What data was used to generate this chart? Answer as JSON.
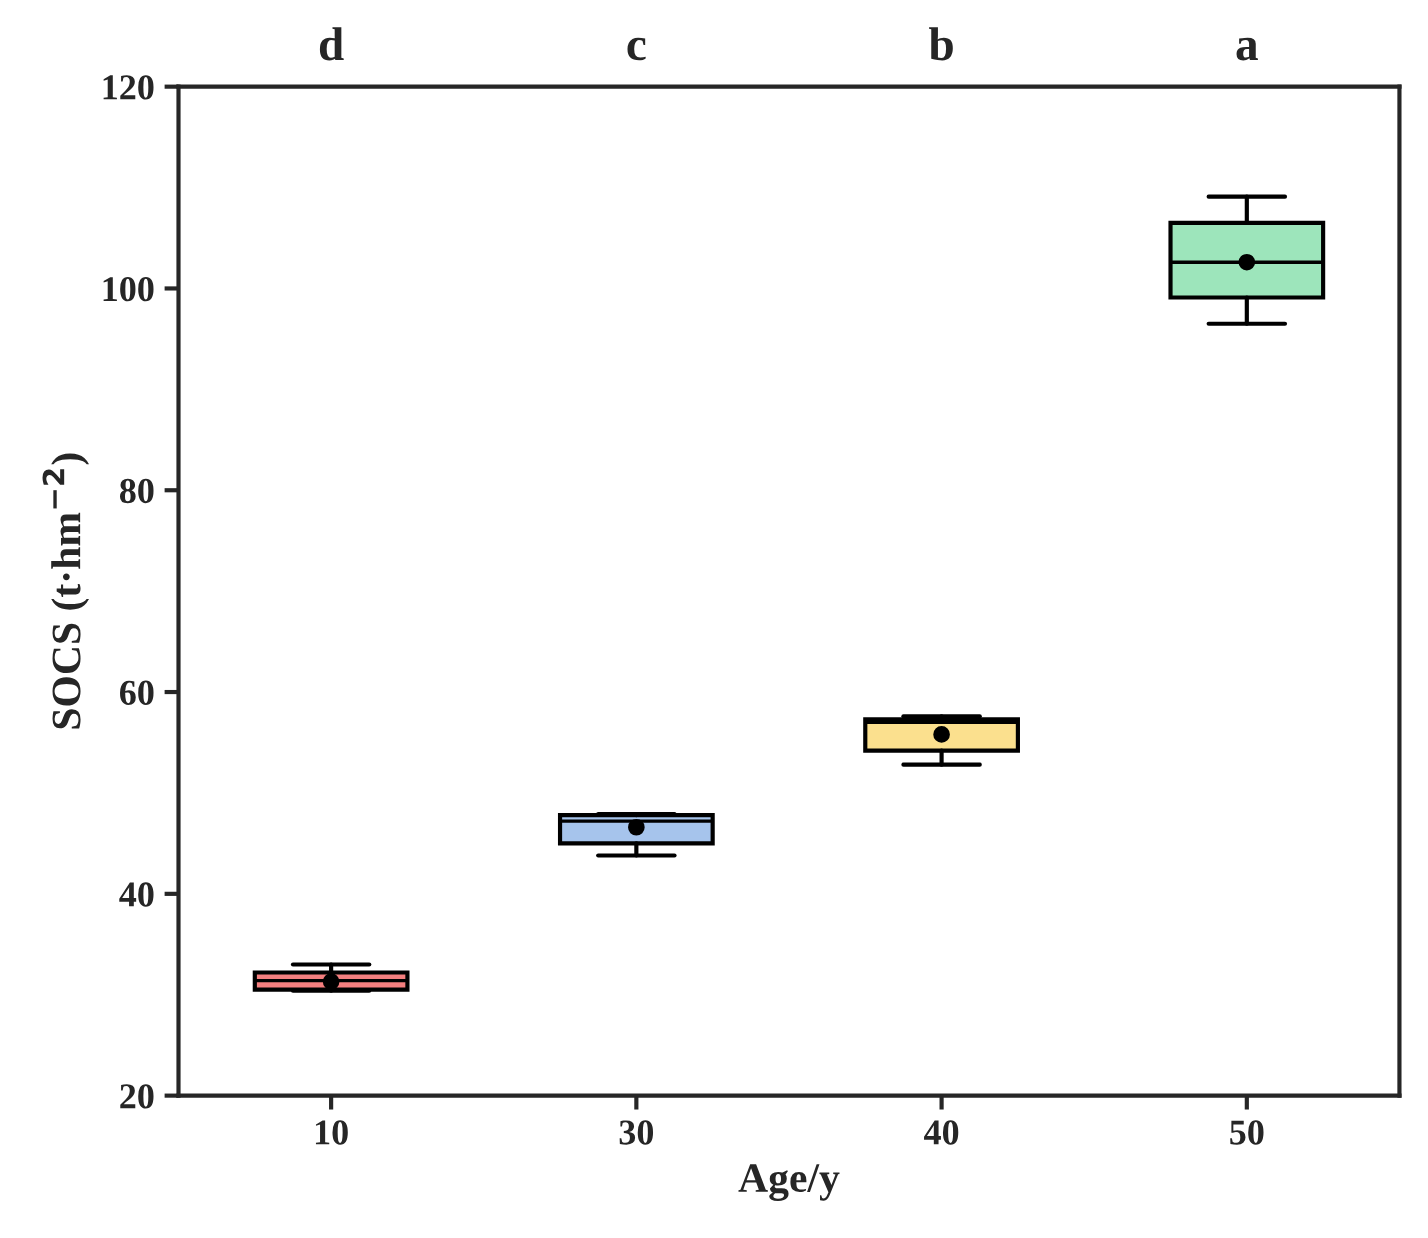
{
  "chart_data": {
    "type": "box",
    "xlabel": "Age/y",
    "ylabel": "SOCS (t·hm$^{−2}$)",
    "categories": [
      "10",
      "30",
      "40",
      "50"
    ],
    "colors": [
      "#f47f7f",
      "#a6c4ec",
      "#fbe08e",
      "#9de5bb"
    ],
    "boxes": [
      {
        "low": 30.4,
        "q1": 30.5,
        "median": 31.4,
        "q3": 32.2,
        "high": 33.0,
        "mean": 31.3
      },
      {
        "low": 43.8,
        "q1": 45.0,
        "median": 47.2,
        "q3": 47.8,
        "high": 47.9,
        "mean": 46.6
      },
      {
        "low": 52.8,
        "q1": 54.2,
        "median": 57.0,
        "q3": 57.3,
        "high": 57.6,
        "mean": 55.8
      },
      {
        "low": 96.5,
        "q1": 99.1,
        "median": 102.6,
        "q3": 106.5,
        "high": 109.1,
        "mean": 102.6
      }
    ],
    "ylim": [
      20,
      120
    ],
    "yticks": [
      20,
      40,
      60,
      80,
      100,
      120
    ],
    "grid": false,
    "annotations": [
      "d",
      "c",
      "b",
      "a"
    ]
  }
}
